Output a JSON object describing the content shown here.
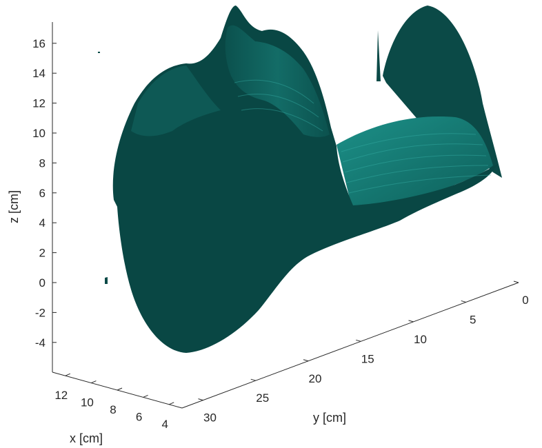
{
  "chart_data": {
    "type": "surface3d",
    "title": "",
    "xlabel": "x [cm]",
    "ylabel": "y [cm]",
    "zlabel": "z [cm]",
    "x_ticks": [
      12,
      10,
      8,
      6,
      4
    ],
    "y_ticks": [
      0,
      5,
      10,
      15,
      20,
      25,
      30
    ],
    "z_ticks": [
      -4,
      -2,
      0,
      2,
      4,
      6,
      8,
      10,
      12,
      14,
      16
    ],
    "xlim": [
      3,
      13
    ],
    "ylim": [
      0,
      32
    ],
    "zlim": [
      -5,
      17
    ],
    "surface_color": "#0a4a47",
    "highlight_color": "#1a8f88",
    "grid": false
  }
}
